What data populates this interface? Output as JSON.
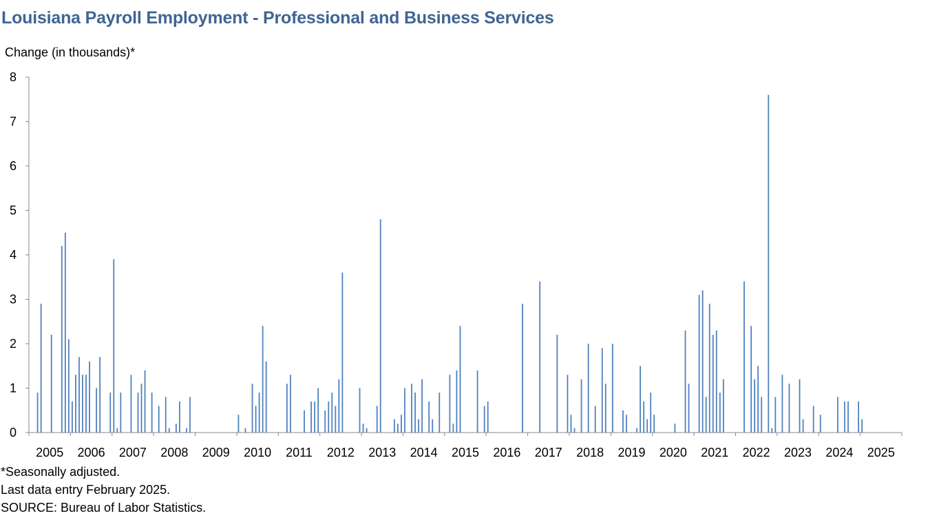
{
  "title": "Louisiana Payroll Employment - Professional and Business Services",
  "notes": [
    "*Seasonally adjusted.",
    "Last data entry February 2025.",
    "SOURCE: Bureau of Labor Statistics."
  ],
  "colors": {
    "title": "#3f6593",
    "bar": "#4f81bd",
    "axis": "#888888"
  },
  "chart_data": {
    "type": "bar",
    "title": "Louisiana Payroll Employment - Professional and Business Services",
    "ylabel": "Change (in thousands)*",
    "xlabel": "",
    "ylim": [
      0,
      8
    ],
    "yticks": [
      0,
      1,
      2,
      3,
      4,
      5,
      6,
      7,
      8
    ],
    "x_tick_labels": [
      "2005",
      "2006",
      "2007",
      "2008",
      "2009",
      "2010",
      "2011",
      "2012",
      "2013",
      "2014",
      "2015",
      "2016",
      "2017",
      "2018",
      "2019",
      "2020",
      "2021",
      "2022",
      "2023",
      "2024",
      "2025"
    ],
    "grid": false,
    "series": [
      {
        "values": [
          {
            "date": "2005-03",
            "value": 0.9
          },
          {
            "date": "2005-04",
            "value": 2.9
          },
          {
            "date": "2005-07",
            "value": 2.2
          },
          {
            "date": "2005-10",
            "value": 4.2
          },
          {
            "date": "2005-11",
            "value": 4.5
          },
          {
            "date": "2005-12",
            "value": 2.1
          },
          {
            "date": "2006-01",
            "value": 0.7
          },
          {
            "date": "2006-02",
            "value": 1.3
          },
          {
            "date": "2006-03",
            "value": 1.7
          },
          {
            "date": "2006-04",
            "value": 1.3
          },
          {
            "date": "2006-05",
            "value": 1.3
          },
          {
            "date": "2006-06",
            "value": 1.6
          },
          {
            "date": "2006-08",
            "value": 1.0
          },
          {
            "date": "2006-09",
            "value": 1.7
          },
          {
            "date": "2006-12",
            "value": 0.9
          },
          {
            "date": "2007-01",
            "value": 3.9
          },
          {
            "date": "2007-02",
            "value": 0.1
          },
          {
            "date": "2007-03",
            "value": 0.9
          },
          {
            "date": "2007-06",
            "value": 1.3
          },
          {
            "date": "2007-08",
            "value": 0.9
          },
          {
            "date": "2007-09",
            "value": 1.1
          },
          {
            "date": "2007-10",
            "value": 1.4
          },
          {
            "date": "2007-12",
            "value": 0.9
          },
          {
            "date": "2008-02",
            "value": 0.6
          },
          {
            "date": "2008-04",
            "value": 0.8
          },
          {
            "date": "2008-05",
            "value": 0.1
          },
          {
            "date": "2008-07",
            "value": 0.2
          },
          {
            "date": "2008-08",
            "value": 0.7
          },
          {
            "date": "2008-10",
            "value": 0.1
          },
          {
            "date": "2008-11",
            "value": 0.8
          },
          {
            "date": "2010-01",
            "value": 0.4
          },
          {
            "date": "2010-03",
            "value": 0.1
          },
          {
            "date": "2010-05",
            "value": 1.1
          },
          {
            "date": "2010-06",
            "value": 0.6
          },
          {
            "date": "2010-07",
            "value": 0.9
          },
          {
            "date": "2010-08",
            "value": 2.4
          },
          {
            "date": "2010-09",
            "value": 1.6
          },
          {
            "date": "2011-03",
            "value": 1.1
          },
          {
            "date": "2011-04",
            "value": 1.3
          },
          {
            "date": "2011-08",
            "value": 0.5
          },
          {
            "date": "2011-10",
            "value": 0.7
          },
          {
            "date": "2011-11",
            "value": 0.7
          },
          {
            "date": "2011-12",
            "value": 1.0
          },
          {
            "date": "2012-02",
            "value": 0.5
          },
          {
            "date": "2012-03",
            "value": 0.7
          },
          {
            "date": "2012-04",
            "value": 0.9
          },
          {
            "date": "2012-05",
            "value": 0.6
          },
          {
            "date": "2012-06",
            "value": 1.2
          },
          {
            "date": "2012-07",
            "value": 3.6
          },
          {
            "date": "2012-12",
            "value": 1.0
          },
          {
            "date": "2013-01",
            "value": 0.2
          },
          {
            "date": "2013-02",
            "value": 0.1
          },
          {
            "date": "2013-05",
            "value": 0.6
          },
          {
            "date": "2013-06",
            "value": 4.8
          },
          {
            "date": "2013-10",
            "value": 0.3
          },
          {
            "date": "2013-11",
            "value": 0.2
          },
          {
            "date": "2013-12",
            "value": 0.4
          },
          {
            "date": "2014-01",
            "value": 1.0
          },
          {
            "date": "2014-03",
            "value": 1.1
          },
          {
            "date": "2014-04",
            "value": 0.9
          },
          {
            "date": "2014-05",
            "value": 0.3
          },
          {
            "date": "2014-06",
            "value": 1.2
          },
          {
            "date": "2014-08",
            "value": 0.7
          },
          {
            "date": "2014-09",
            "value": 0.3
          },
          {
            "date": "2014-11",
            "value": 0.9
          },
          {
            "date": "2015-02",
            "value": 1.3
          },
          {
            "date": "2015-03",
            "value": 0.2
          },
          {
            "date": "2015-04",
            "value": 1.4
          },
          {
            "date": "2015-05",
            "value": 2.4
          },
          {
            "date": "2015-10",
            "value": 1.4
          },
          {
            "date": "2015-12",
            "value": 0.6
          },
          {
            "date": "2016-01",
            "value": 0.7
          },
          {
            "date": "2016-11",
            "value": 2.9
          },
          {
            "date": "2017-04",
            "value": 3.4
          },
          {
            "date": "2017-09",
            "value": 2.2
          },
          {
            "date": "2017-12",
            "value": 1.3
          },
          {
            "date": "2018-01",
            "value": 0.4
          },
          {
            "date": "2018-02",
            "value": 0.1
          },
          {
            "date": "2018-04",
            "value": 1.2
          },
          {
            "date": "2018-06",
            "value": 2.0
          },
          {
            "date": "2018-08",
            "value": 0.6
          },
          {
            "date": "2018-10",
            "value": 1.9
          },
          {
            "date": "2018-11",
            "value": 1.1
          },
          {
            "date": "2019-01",
            "value": 2.0
          },
          {
            "date": "2019-04",
            "value": 0.5
          },
          {
            "date": "2019-05",
            "value": 0.4
          },
          {
            "date": "2019-08",
            "value": 0.1
          },
          {
            "date": "2019-09",
            "value": 1.5
          },
          {
            "date": "2019-10",
            "value": 0.7
          },
          {
            "date": "2019-11",
            "value": 0.3
          },
          {
            "date": "2019-12",
            "value": 0.9
          },
          {
            "date": "2020-01",
            "value": 0.4
          },
          {
            "date": "2020-07",
            "value": 0.2
          },
          {
            "date": "2020-10",
            "value": 2.3
          },
          {
            "date": "2020-11",
            "value": 1.1
          },
          {
            "date": "2021-02",
            "value": 3.1
          },
          {
            "date": "2021-03",
            "value": 3.2
          },
          {
            "date": "2021-04",
            "value": 0.8
          },
          {
            "date": "2021-05",
            "value": 2.9
          },
          {
            "date": "2021-06",
            "value": 2.2
          },
          {
            "date": "2021-07",
            "value": 2.3
          },
          {
            "date": "2021-08",
            "value": 0.9
          },
          {
            "date": "2021-09",
            "value": 1.2
          },
          {
            "date": "2022-03",
            "value": 3.4
          },
          {
            "date": "2022-05",
            "value": 2.4
          },
          {
            "date": "2022-06",
            "value": 1.2
          },
          {
            "date": "2022-07",
            "value": 1.5
          },
          {
            "date": "2022-08",
            "value": 0.8
          },
          {
            "date": "2022-10",
            "value": 7.6
          },
          {
            "date": "2022-11",
            "value": 0.1
          },
          {
            "date": "2022-12",
            "value": 0.8
          },
          {
            "date": "2023-02",
            "value": 1.3
          },
          {
            "date": "2023-04",
            "value": 1.1
          },
          {
            "date": "2023-07",
            "value": 1.2
          },
          {
            "date": "2023-08",
            "value": 0.3
          },
          {
            "date": "2023-11",
            "value": 0.6
          },
          {
            "date": "2024-01",
            "value": 0.4
          },
          {
            "date": "2024-06",
            "value": 0.8
          },
          {
            "date": "2024-08",
            "value": 0.7
          },
          {
            "date": "2024-09",
            "value": 0.7
          },
          {
            "date": "2024-12",
            "value": 0.7
          },
          {
            "date": "2025-01",
            "value": 0.3
          }
        ]
      }
    ]
  }
}
